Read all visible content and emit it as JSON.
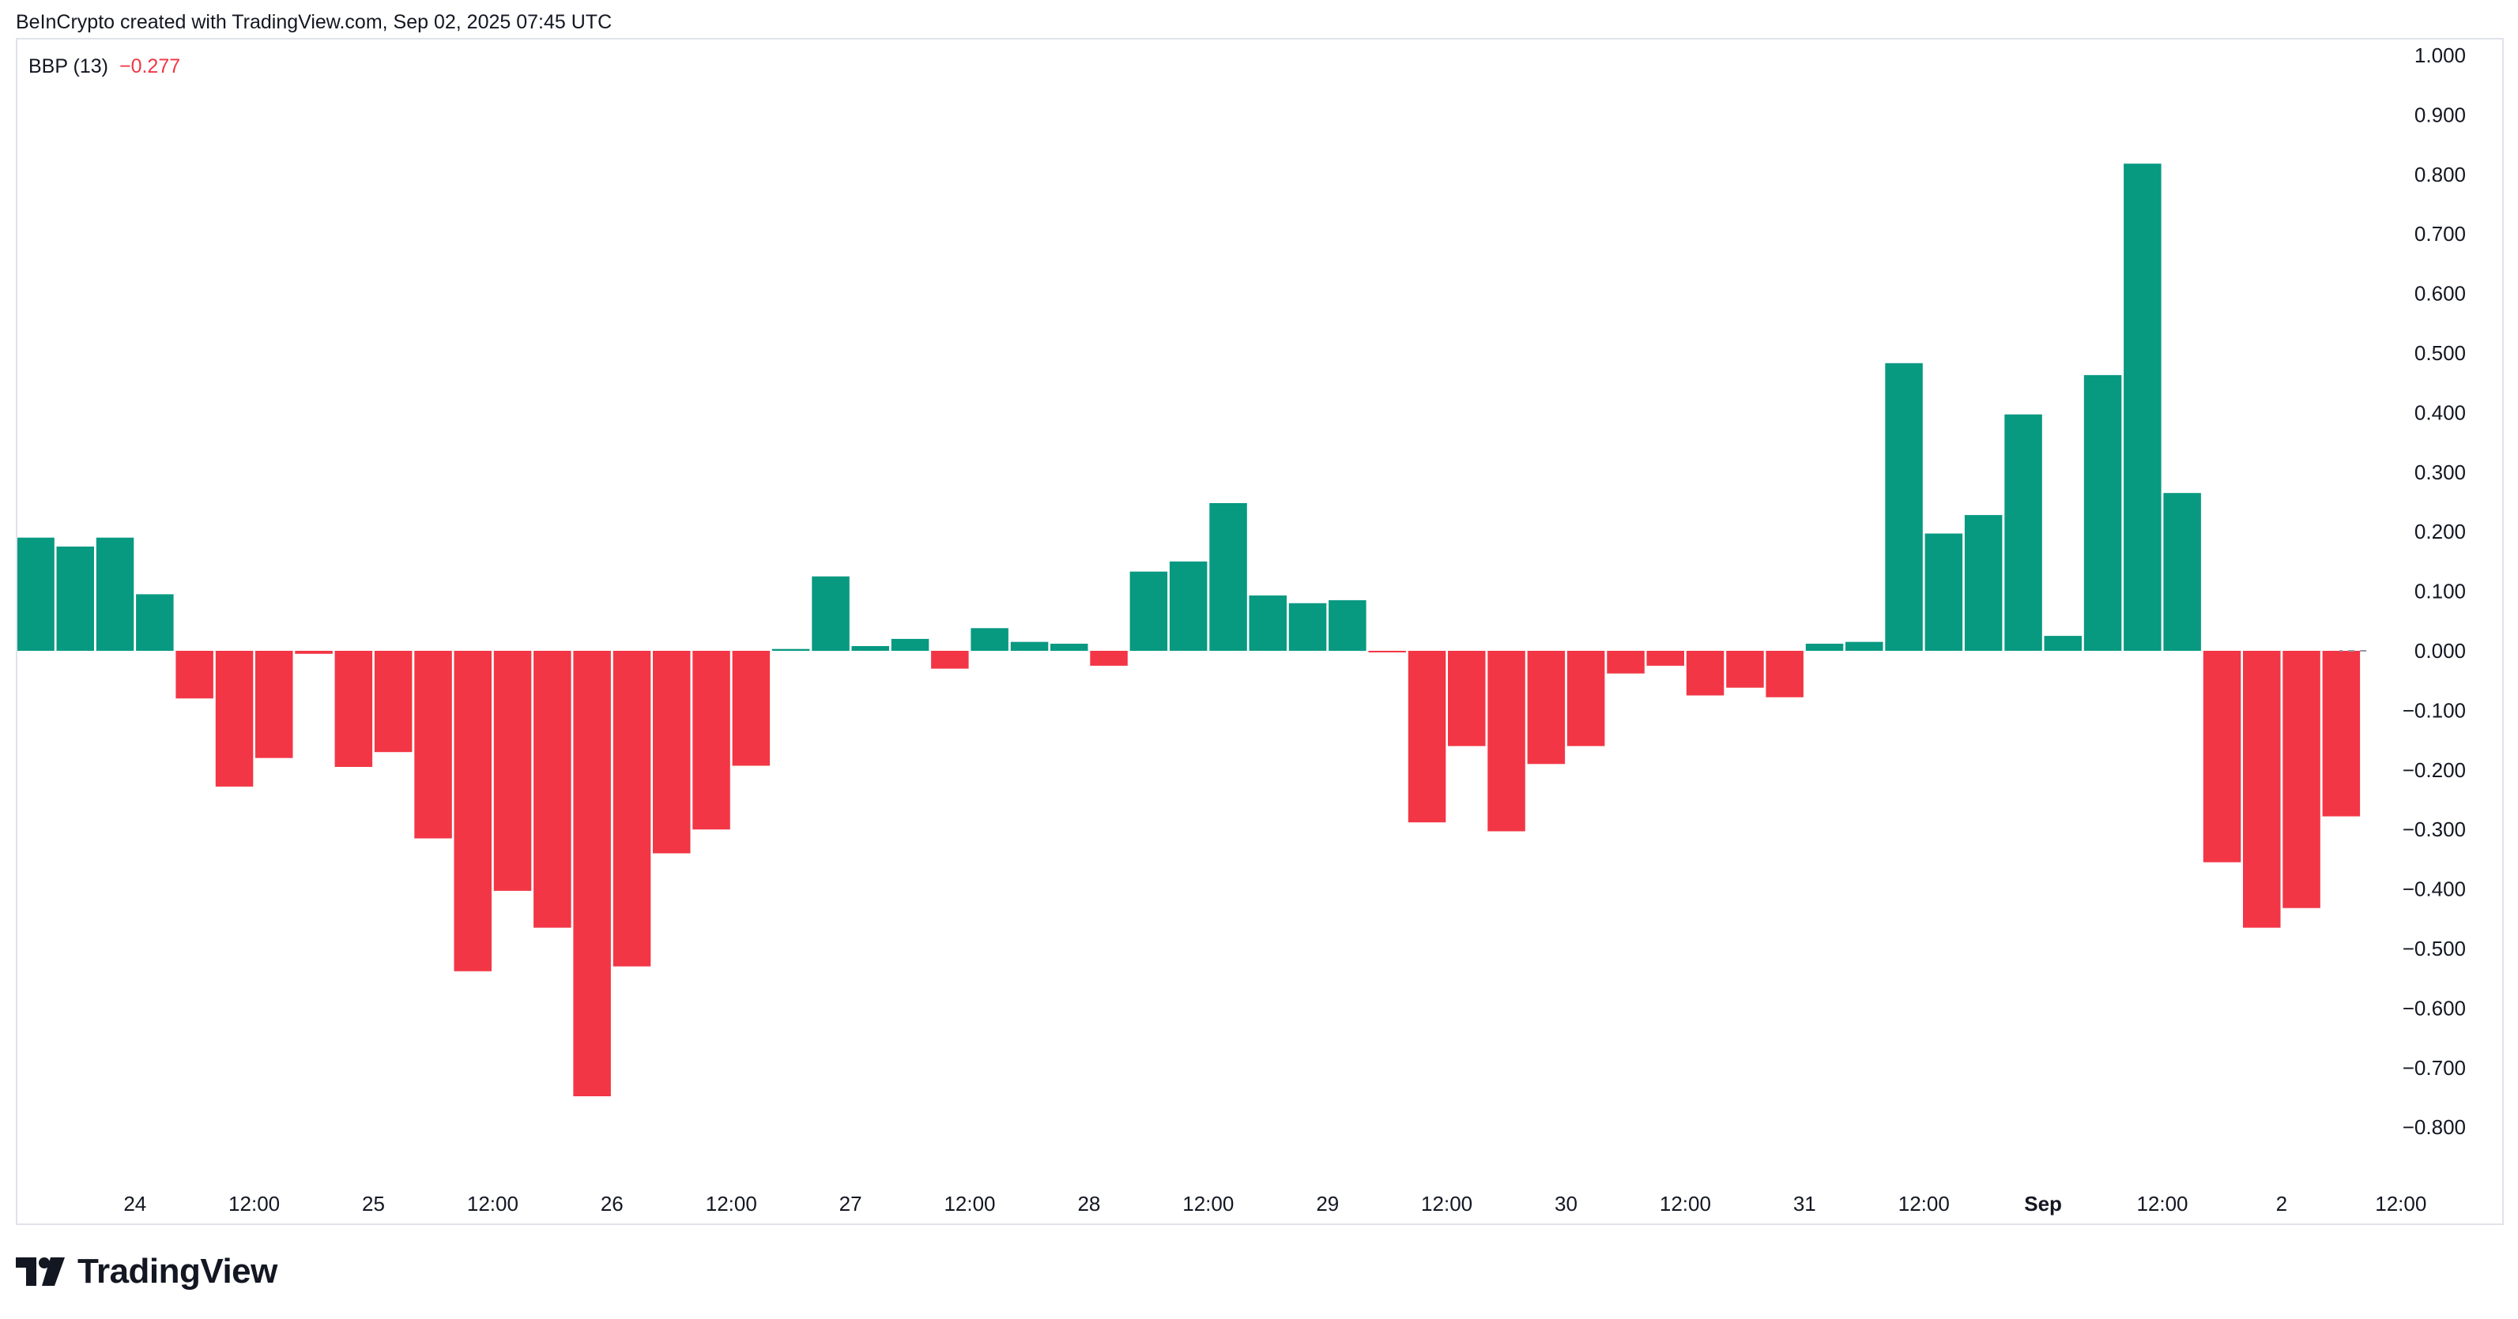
{
  "header": {
    "credit": "BeInCrypto created with TradingView.com, Sep 02, 2025 07:45 UTC"
  },
  "indicator": {
    "name": "BBP (13)",
    "value": "−0.277"
  },
  "brand": {
    "name": "TradingView",
    "logo_icon": "tradingview-logo-icon"
  },
  "colors": {
    "positive": "#089981",
    "negative": "#f23645",
    "text": "#131722",
    "zero_line": "#9598a1",
    "frame": "#e0e3eb"
  },
  "chart_data": {
    "type": "bar",
    "series": [
      {
        "values": [
          0.19,
          0.175,
          0.19,
          0.095,
          -0.08,
          -0.228,
          -0.18,
          -0.005,
          -0.195,
          -0.17,
          -0.315,
          -0.538,
          -0.403,
          -0.465,
          -0.748,
          -0.53,
          -0.34,
          -0.3,
          -0.193,
          0.003,
          0.125,
          0.008,
          0.02,
          -0.03,
          0.038,
          0.015,
          0.012,
          -0.025,
          0.133,
          0.15,
          0.248,
          0.093,
          0.08,
          0.085,
          -0.002,
          -0.288,
          -0.16,
          -0.303,
          -0.19,
          -0.16,
          -0.038,
          -0.025,
          -0.075,
          -0.062,
          -0.078,
          0.012,
          0.015,
          0.483,
          0.197,
          0.228,
          0.397,
          0.025,
          0.463,
          0.818,
          0.265,
          -0.355,
          -0.465,
          -0.432,
          -0.278
        ]
      }
    ],
    "ylim": [
      -0.88,
      1.03
    ],
    "y_ticks": [
      "1.000",
      "0.900",
      "0.800",
      "0.700",
      "0.600",
      "0.500",
      "0.400",
      "0.300",
      "0.200",
      "0.100",
      "0.000",
      "−0.100",
      "−0.200",
      "−0.300",
      "−0.400",
      "−0.500",
      "−0.600",
      "−0.700",
      "−0.800"
    ],
    "y_tick_values": [
      1.0,
      0.9,
      0.8,
      0.7,
      0.6,
      0.5,
      0.4,
      0.3,
      0.2,
      0.1,
      0.0,
      -0.1,
      -0.2,
      -0.3,
      -0.4,
      -0.5,
      -0.6,
      -0.7,
      -0.8
    ],
    "x_ticks": [
      {
        "label": "24",
        "bar": 2.5
      },
      {
        "label": "12:00",
        "bar": 5.5
      },
      {
        "label": "25",
        "bar": 8.5
      },
      {
        "label": "12:00",
        "bar": 11.5
      },
      {
        "label": "26",
        "bar": 14.5
      },
      {
        "label": "12:00",
        "bar": 17.5
      },
      {
        "label": "27",
        "bar": 20.5
      },
      {
        "label": "12:00",
        "bar": 23.5
      },
      {
        "label": "28",
        "bar": 26.5
      },
      {
        "label": "12:00",
        "bar": 29.5
      },
      {
        "label": "29",
        "bar": 32.5
      },
      {
        "label": "12:00",
        "bar": 35.5
      },
      {
        "label": "30",
        "bar": 38.5
      },
      {
        "label": "12:00",
        "bar": 41.5
      },
      {
        "label": "31",
        "bar": 44.5
      },
      {
        "label": "12:00",
        "bar": 47.5
      },
      {
        "label": "Sep",
        "bar": 50.5,
        "bold": true
      },
      {
        "label": "12:00",
        "bar": 53.5
      },
      {
        "label": "2",
        "bar": 56.5
      },
      {
        "label": "12:00",
        "bar": 59.5
      }
    ],
    "grid": false,
    "legend": "top-left"
  }
}
